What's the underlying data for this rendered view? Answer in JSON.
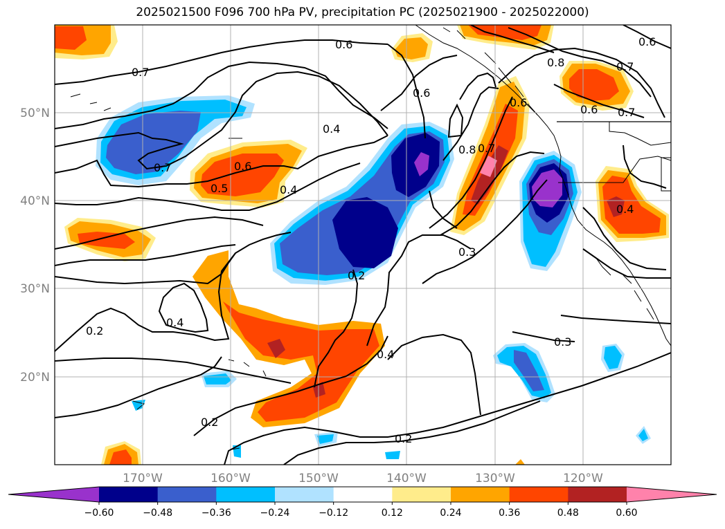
{
  "title": "2025021500 F096 700 hPa PV, precipitation PC (2025021900 - 2025022000)",
  "map": {
    "lat_labels": [
      "50°N",
      "40°N",
      "30°N",
      "20°N"
    ],
    "lon_labels": [
      "170°W",
      "160°W",
      "150°W",
      "140°W",
      "130°W",
      "120°W"
    ],
    "gridlines": true
  },
  "contour_labels": [
    "0.6",
    "0.7",
    "0.6",
    "0.4",
    "0.7",
    "0.6",
    "0.5",
    "0.4",
    "0.8",
    "0.7",
    "0.6",
    "0.8",
    "0.7",
    "0.6",
    "0.7",
    "0.3",
    "0.4",
    "0.2",
    "0.4",
    "0.2",
    "0.4",
    "0.3",
    "0.2",
    "0.2"
  ],
  "colorbar": {
    "tick_labels": [
      "−0.60",
      "−0.48",
      "−0.36",
      "−0.24",
      "−0.12",
      "0.12",
      "0.24",
      "0.36",
      "0.48",
      "0.60"
    ],
    "colors": [
      "#9932cc",
      "#00008b",
      "#3a5fcd",
      "#00bfff",
      "#b0e2ff",
      "#ffffff",
      "#ffec8b",
      "#ffa500",
      "#ff4500",
      "#b22222",
      "#ff82ab"
    ]
  },
  "shading_colors": {
    "neg_1": "#b0e2ff",
    "neg_2": "#00bfff",
    "neg_3": "#3a5fcd",
    "neg_4": "#00008b",
    "neg_5": "#9932cc",
    "pos_1": "#ffec8b",
    "pos_2": "#ffa500",
    "pos_3": "#ff4500",
    "pos_4": "#b22222",
    "pos_5": "#ff82ab"
  }
}
